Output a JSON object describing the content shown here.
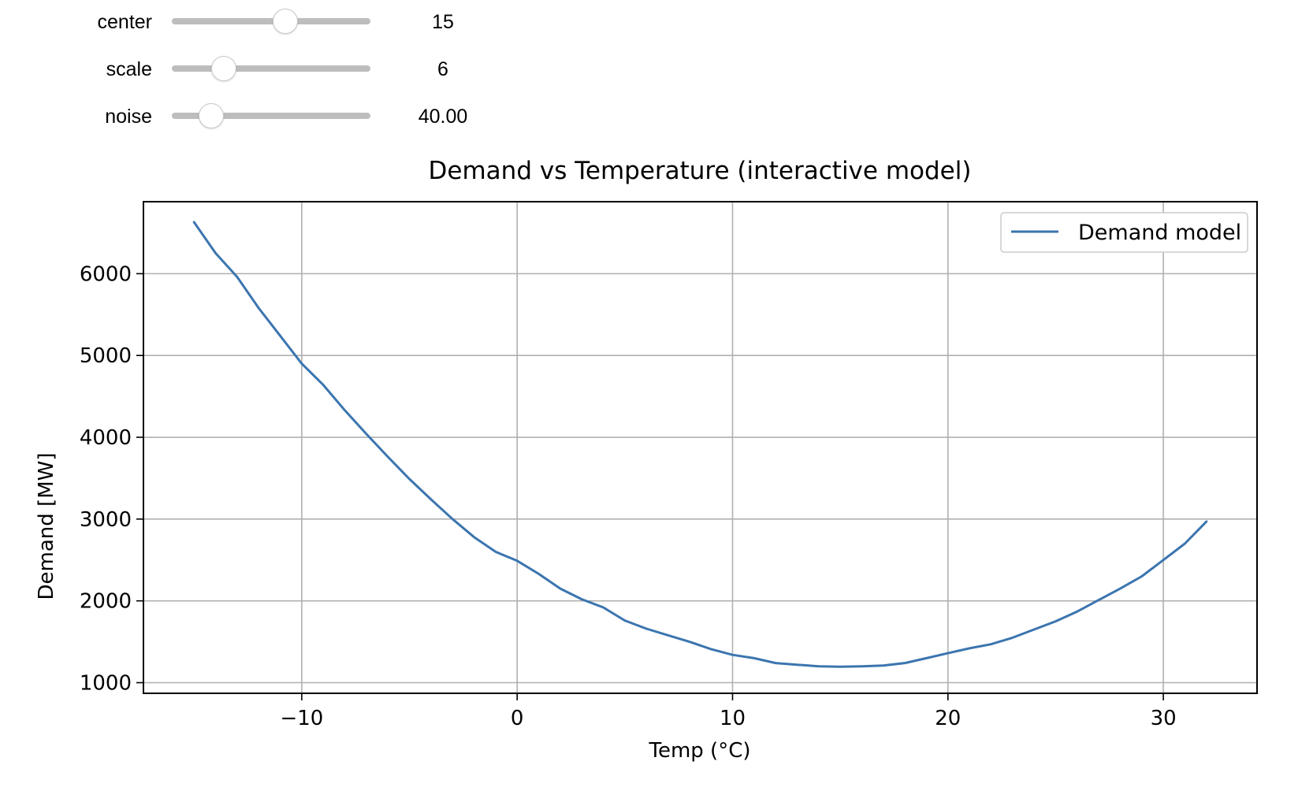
{
  "sliders": [
    {
      "name": "center",
      "label": "center",
      "value_text": "15",
      "min": -5,
      "max": 30,
      "value": 15
    },
    {
      "name": "scale",
      "label": "scale",
      "value_text": "6",
      "min": 1,
      "max": 20,
      "value": 6
    },
    {
      "name": "noise",
      "label": "noise",
      "value_text": "40.00",
      "min": 0,
      "max": 200,
      "value": 40
    }
  ],
  "chart_data": {
    "type": "line",
    "title": "Demand vs Temperature (interactive model)",
    "xlabel": "Temp (°C)",
    "ylabel": "Demand [MW]",
    "xlim": [
      -17.35,
      34.35
    ],
    "ylim": [
      870,
      6880
    ],
    "xticks": [
      -10,
      0,
      10,
      20,
      30
    ],
    "xtick_labels": [
      "−10",
      "0",
      "10",
      "20",
      "30"
    ],
    "yticks": [
      1000,
      2000,
      3000,
      4000,
      5000,
      6000
    ],
    "ytick_labels": [
      "1000",
      "2000",
      "3000",
      "4000",
      "5000",
      "6000"
    ],
    "grid": true,
    "legend_position": "upper right",
    "line_color": "#3b75af",
    "series": [
      {
        "name": "Demand model",
        "x": [
          -15,
          -14,
          -13,
          -12,
          -11,
          -10,
          -9,
          -8,
          -7,
          -6,
          -5,
          -4,
          -3,
          -2,
          -1,
          0,
          1,
          2,
          3,
          4,
          5,
          6,
          7,
          8,
          9,
          10,
          11,
          12,
          13,
          14,
          15,
          16,
          17,
          18,
          19,
          20,
          21,
          22,
          23,
          24,
          25,
          26,
          27,
          28,
          29,
          30,
          31,
          32
        ],
        "y": [
          6630,
          6250,
          5960,
          5580,
          5240,
          4900,
          4640,
          4330,
          4040,
          3760,
          3490,
          3240,
          3000,
          2780,
          2600,
          2490,
          2330,
          2150,
          2020,
          1920,
          1760,
          1660,
          1580,
          1500,
          1410,
          1340,
          1300,
          1240,
          1220,
          1200,
          1195,
          1200,
          1210,
          1240,
          1300,
          1360,
          1420,
          1470,
          1550,
          1650,
          1750,
          1870,
          2010,
          2150,
          2300,
          2500,
          2700,
          2970
        ]
      }
    ]
  }
}
